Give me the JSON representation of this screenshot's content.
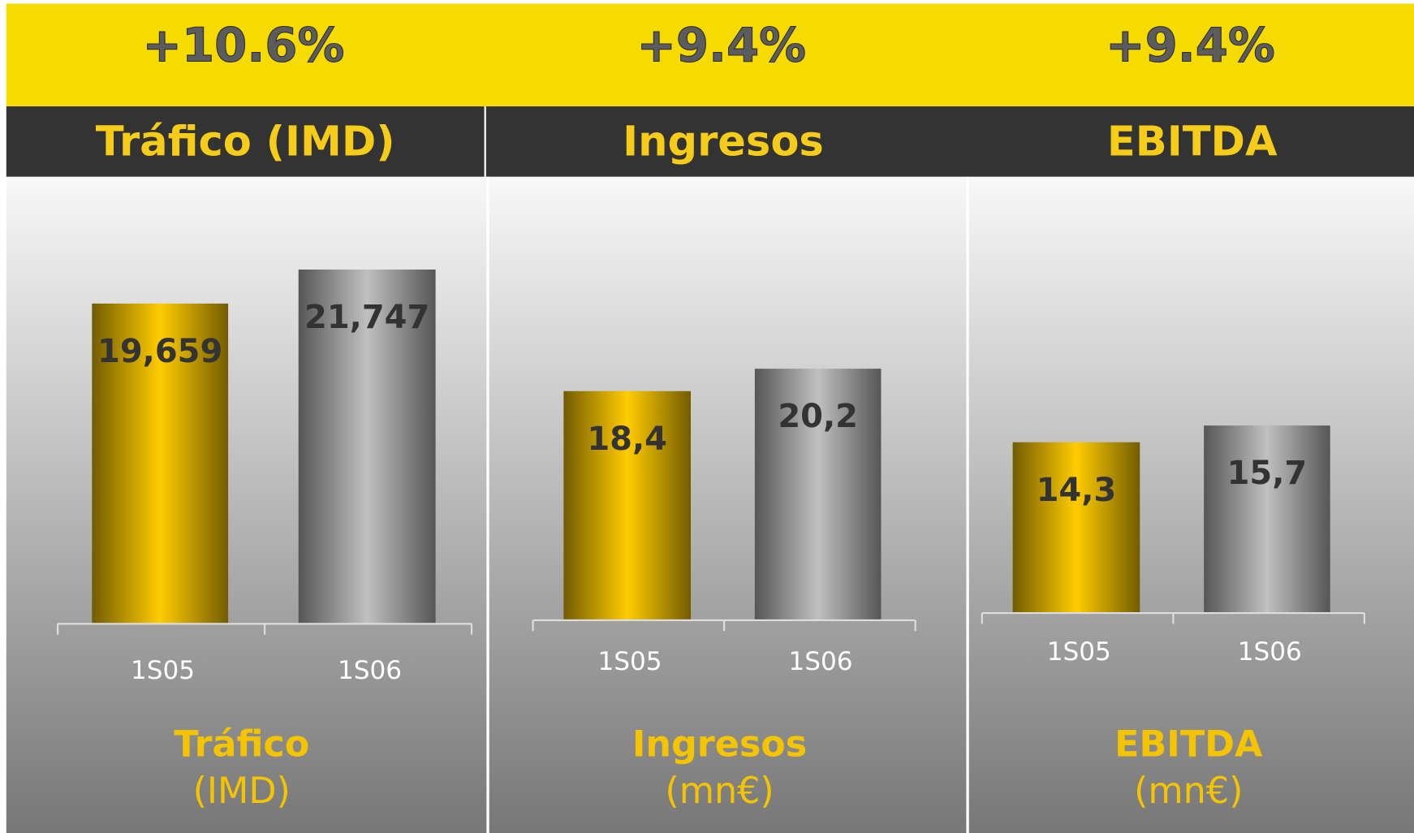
{
  "chart_data": [
    {
      "type": "bar",
      "growth": "+10.6%",
      "title": "Tráfico (IMD)",
      "categories": [
        "1S05",
        "1S06"
      ],
      "values": [
        19659,
        21747
      ],
      "value_labels": [
        "19,659",
        "21,747"
      ],
      "colors": [
        "#ffcc00",
        "#c0c0c0"
      ],
      "label": "Tráfico",
      "unit": "(IMD)"
    },
    {
      "type": "bar",
      "growth": "+9.4%",
      "title": "Ingresos",
      "categories": [
        "1S05",
        "1S06"
      ],
      "values": [
        18.4,
        20.2
      ],
      "value_labels": [
        "18,4",
        "20,2"
      ],
      "colors": [
        "#ffcc00",
        "#c0c0c0"
      ],
      "label": "Ingresos",
      "unit": "(mn€)"
    },
    {
      "type": "bar",
      "growth": "+9.4%",
      "title": "EBITDA",
      "categories": [
        "1S05",
        "1S06"
      ],
      "values": [
        14.3,
        15.7
      ],
      "value_labels": [
        "14,3",
        "15,7"
      ],
      "colors": [
        "#ffcc00",
        "#c0c0c0"
      ],
      "label": "EBITDA",
      "unit": "(mn€)"
    }
  ]
}
